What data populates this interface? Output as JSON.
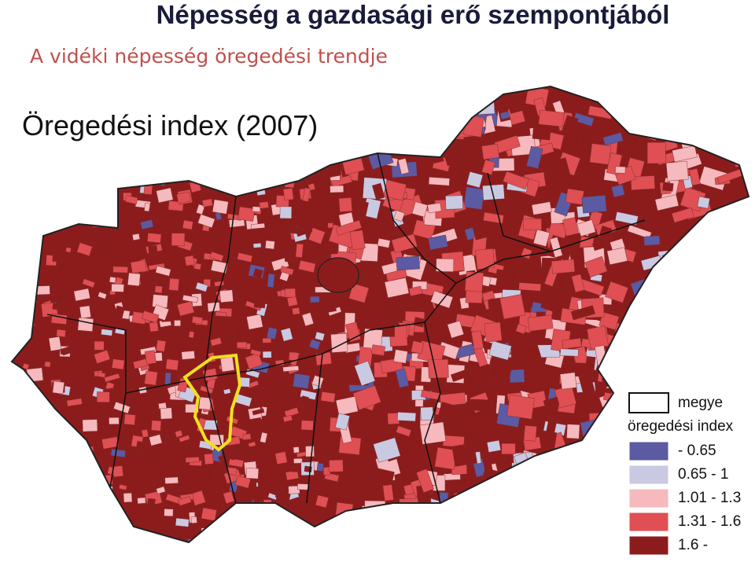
{
  "header": {
    "title": "Népesség a gazdasági erő szempontjából",
    "subtitle": "A vidéki népesség öregedési trendje"
  },
  "map": {
    "title": "Öregedési index (2007)",
    "legend": {
      "border_label": "megye",
      "title": "öregedési index",
      "classes": [
        {
          "label": "- 0.65",
          "color": "#5b5aa3"
        },
        {
          "label": "0.65 - 1",
          "color": "#c9c9e2"
        },
        {
          "label": "1.01 - 1.3",
          "color": "#f6b9bd"
        },
        {
          "label": "1.31 - 1.6",
          "color": "#df4f53"
        },
        {
          "label": "1.6 -",
          "color": "#8c1c1c"
        }
      ]
    }
  }
}
